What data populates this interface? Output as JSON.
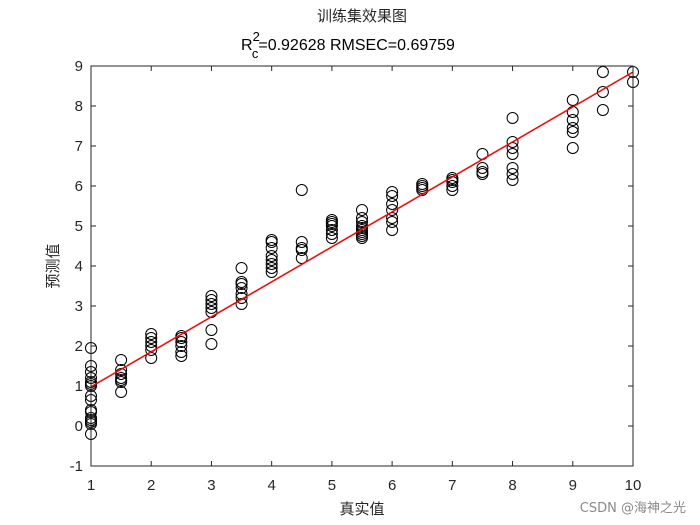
{
  "chart_data": {
    "type": "scatter",
    "title": "训练集效果图",
    "subtitle": {
      "r_letter": "R",
      "r_sup": "2",
      "r_sub": "c",
      "rest": "=0.92628  RMSEC=0.69759"
    },
    "xlabel": "真实值",
    "ylabel": "预测值",
    "xlim": [
      1,
      10
    ],
    "ylim": [
      -1,
      9
    ],
    "xticks": [
      1,
      2,
      3,
      4,
      5,
      6,
      7,
      8,
      9,
      10
    ],
    "yticks": [
      -1,
      0,
      1,
      2,
      3,
      4,
      5,
      6,
      7,
      8,
      9
    ],
    "grid": false,
    "marker_color": "#000000",
    "fit_line_color": "#ff0000",
    "fit_line": {
      "x": [
        1,
        10
      ],
      "y": [
        0.98,
        8.85
      ]
    },
    "points": [
      [
        1.0,
        -0.2
      ],
      [
        1.0,
        0.05
      ],
      [
        1.0,
        0.1
      ],
      [
        1.0,
        0.15
      ],
      [
        1.0,
        0.2
      ],
      [
        1.0,
        0.35
      ],
      [
        1.0,
        0.4
      ],
      [
        1.0,
        0.65
      ],
      [
        1.0,
        0.75
      ],
      [
        1.0,
        1.0
      ],
      [
        1.0,
        1.05
      ],
      [
        1.0,
        1.1
      ],
      [
        1.0,
        1.2
      ],
      [
        1.0,
        1.35
      ],
      [
        1.0,
        1.5
      ],
      [
        1.0,
        1.95
      ],
      [
        1.5,
        0.85
      ],
      [
        1.5,
        1.1
      ],
      [
        1.5,
        1.15
      ],
      [
        1.5,
        1.2
      ],
      [
        1.5,
        1.3
      ],
      [
        1.5,
        1.4
      ],
      [
        1.5,
        1.65
      ],
      [
        2.0,
        1.7
      ],
      [
        2.0,
        1.9
      ],
      [
        2.0,
        2.0
      ],
      [
        2.0,
        2.1
      ],
      [
        2.0,
        2.2
      ],
      [
        2.0,
        2.3
      ],
      [
        2.5,
        1.75
      ],
      [
        2.5,
        1.85
      ],
      [
        2.5,
        2.0
      ],
      [
        2.5,
        2.1
      ],
      [
        2.5,
        2.2
      ],
      [
        2.5,
        2.25
      ],
      [
        3.0,
        2.05
      ],
      [
        3.0,
        2.4
      ],
      [
        3.0,
        2.85
      ],
      [
        3.0,
        2.95
      ],
      [
        3.0,
        3.05
      ],
      [
        3.0,
        3.15
      ],
      [
        3.0,
        3.25
      ],
      [
        3.5,
        3.05
      ],
      [
        3.5,
        3.2
      ],
      [
        3.5,
        3.3
      ],
      [
        3.5,
        3.45
      ],
      [
        3.5,
        3.55
      ],
      [
        3.5,
        3.6
      ],
      [
        3.5,
        3.95
      ],
      [
        4.0,
        3.85
      ],
      [
        4.0,
        3.95
      ],
      [
        4.0,
        4.05
      ],
      [
        4.0,
        4.15
      ],
      [
        4.0,
        4.25
      ],
      [
        4.0,
        4.45
      ],
      [
        4.0,
        4.6
      ],
      [
        4.0,
        4.65
      ],
      [
        4.5,
        4.2
      ],
      [
        4.5,
        4.4
      ],
      [
        4.5,
        4.45
      ],
      [
        4.5,
        4.6
      ],
      [
        4.5,
        5.9
      ],
      [
        5.0,
        4.7
      ],
      [
        5.0,
        4.8
      ],
      [
        5.0,
        4.9
      ],
      [
        5.0,
        5.0
      ],
      [
        5.0,
        5.05
      ],
      [
        5.0,
        5.1
      ],
      [
        5.0,
        5.15
      ],
      [
        5.5,
        4.7
      ],
      [
        5.5,
        4.75
      ],
      [
        5.5,
        4.8
      ],
      [
        5.5,
        4.85
      ],
      [
        5.5,
        4.9
      ],
      [
        5.5,
        4.95
      ],
      [
        5.5,
        5.0
      ],
      [
        5.5,
        5.1
      ],
      [
        5.5,
        5.2
      ],
      [
        5.5,
        5.4
      ],
      [
        6.0,
        4.9
      ],
      [
        6.0,
        5.1
      ],
      [
        6.0,
        5.2
      ],
      [
        6.0,
        5.4
      ],
      [
        6.0,
        5.55
      ],
      [
        6.0,
        5.75
      ],
      [
        6.0,
        5.85
      ],
      [
        6.5,
        5.9
      ],
      [
        6.5,
        5.95
      ],
      [
        6.5,
        6.0
      ],
      [
        6.5,
        6.05
      ],
      [
        7.0,
        5.9
      ],
      [
        7.0,
        6.0
      ],
      [
        7.0,
        6.1
      ],
      [
        7.0,
        6.15
      ],
      [
        7.0,
        6.2
      ],
      [
        7.5,
        6.3
      ],
      [
        7.5,
        6.35
      ],
      [
        7.5,
        6.45
      ],
      [
        7.5,
        6.8
      ],
      [
        8.0,
        6.15
      ],
      [
        8.0,
        6.3
      ],
      [
        8.0,
        6.45
      ],
      [
        8.0,
        6.8
      ],
      [
        8.0,
        6.95
      ],
      [
        8.0,
        7.1
      ],
      [
        8.0,
        7.7
      ],
      [
        9.0,
        6.95
      ],
      [
        9.0,
        7.35
      ],
      [
        9.0,
        7.45
      ],
      [
        9.0,
        7.65
      ],
      [
        9.0,
        7.85
      ],
      [
        9.0,
        8.15
      ],
      [
        9.5,
        7.9
      ],
      [
        9.5,
        8.35
      ],
      [
        9.5,
        8.85
      ],
      [
        10.0,
        8.6
      ],
      [
        10.0,
        8.85
      ]
    ]
  },
  "watermark": "CSDN @海神之光"
}
